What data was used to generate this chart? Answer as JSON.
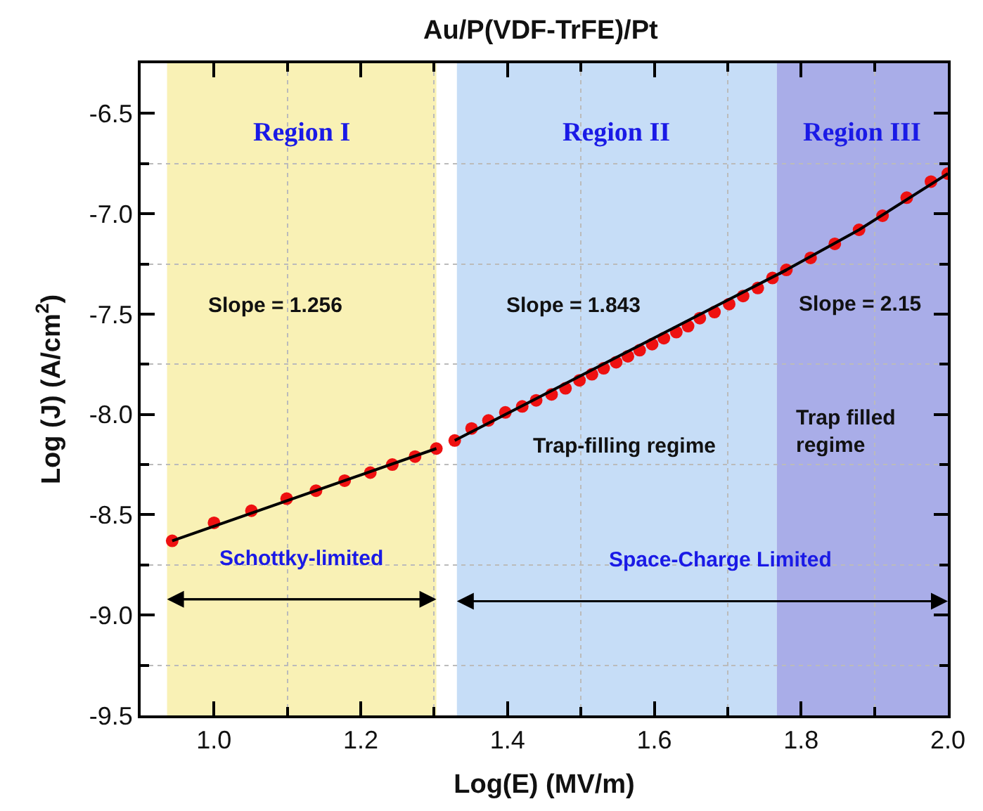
{
  "chart_data": {
    "type": "scatter",
    "title": "Au/P(VDF-TrFE)/Pt",
    "xlabel": "Log(E) (MV/m)",
    "ylabel": "Log (J) (A/cm$^{2}$)",
    "xlim": [
      0.9,
      2.0
    ],
    "xticks": [
      {
        "value": 1.0,
        "label": "1.0"
      },
      1.2,
      1.4,
      1.6,
      1.8,
      {
        "value": 2.0,
        "label": "2.0"
      }
    ],
    "ylim": [
      -9.5,
      -6.25
    ],
    "yticks": [
      -9.5,
      {
        "value": -9.0,
        "label": "-9.0"
      },
      -8.5,
      {
        "value": -8.0,
        "label": "-8.0"
      },
      -7.5,
      {
        "value": -7.0,
        "label": "-7.0"
      },
      -6.5
    ],
    "grid": true,
    "series": [
      {
        "marker": "circle",
        "color": "#ee1111",
        "x": [
          0.943,
          1.0,
          1.051,
          1.099,
          1.139,
          1.178,
          1.213,
          1.243,
          1.274,
          1.303,
          1.328,
          1.351,
          1.374,
          1.397,
          1.42,
          1.439,
          1.46,
          1.479,
          1.498,
          1.515,
          1.531,
          1.548,
          1.564,
          1.58,
          1.597,
          1.613,
          1.63,
          1.646,
          1.662,
          1.682,
          1.702,
          1.721,
          1.741,
          1.761,
          1.78,
          1.813,
          1.846,
          1.879,
          1.911,
          1.944,
          1.977,
          2.0
        ],
        "values": [
          -8.63,
          -8.54,
          -8.48,
          -8.42,
          -8.38,
          -8.33,
          -8.29,
          -8.25,
          -8.21,
          -8.17,
          -8.13,
          -8.07,
          -8.03,
          -7.99,
          -7.96,
          -7.93,
          -7.9,
          -7.87,
          -7.83,
          -7.8,
          -7.77,
          -7.74,
          -7.71,
          -7.68,
          -7.65,
          -7.62,
          -7.59,
          -7.56,
          -7.52,
          -7.49,
          -7.45,
          -7.41,
          -7.37,
          -7.32,
          -7.28,
          -7.22,
          -7.15,
          -7.08,
          -7.01,
          -6.92,
          -6.84,
          -6.8
        ]
      },
      {
        "type": "line",
        "marker": "none",
        "color": "#000000",
        "line_style": "solid",
        "x": [
          0.943,
          1.303
        ],
        "values": [
          -8.63,
          -8.17
        ]
      },
      {
        "type": "line",
        "marker": "none",
        "color": "#000000",
        "line_style": "solid",
        "x": [
          1.328,
          1.78
        ],
        "values": [
          -8.13,
          -7.28
        ]
      },
      {
        "type": "line",
        "marker": "none",
        "color": "#000000",
        "line_style": "solid",
        "x": [
          1.77,
          1.879,
          2.0
        ],
        "values": [
          -7.3,
          -7.08,
          -6.8
        ]
      }
    ],
    "bands": [
      {
        "axis": "x",
        "from": 0.936,
        "to": 1.303,
        "label": "Region I",
        "color": "#f9f1b5"
      },
      {
        "axis": "x",
        "from": 1.331,
        "to": 1.767,
        "label": "Region II",
        "color": "#c6ddf7"
      },
      {
        "axis": "x",
        "from": 1.767,
        "to": 2.0,
        "label": "Region III",
        "color": "#a9ade8"
      }
    ],
    "annotations": [
      "Slope = 1.256",
      "Slope = 1.843",
      "Slope = 2.15",
      "Trap-filling regime",
      "Trap filled\nregime",
      "Schottky-limited",
      "Space-Charge Limited"
    ]
  }
}
